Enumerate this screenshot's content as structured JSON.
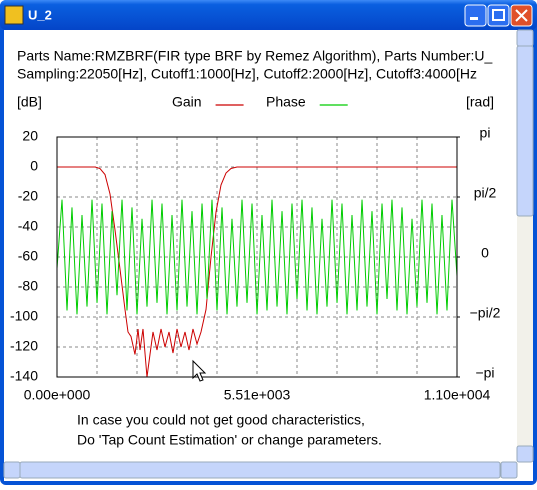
{
  "window": {
    "title": "U_2",
    "info_lines": [
      "Parts Name:RMZBRF(FIR type BRF by Remez Algorithm), Parts Number:U_",
      "Sampling:22050[Hz], Cutoff1:1000[Hz], Cutoff2:2000[Hz], Cutoff3:4000[Hz"
    ],
    "notes": [
      "In case you could not get good characteristics,",
      "Do 'Tap Count Estimation' or change parameters."
    ]
  },
  "chart_data": {
    "type": "line",
    "y_label": "[dB]",
    "y2_label": "[rad]",
    "grid": true,
    "xlim": [
      0,
      11025
    ],
    "xticks": [
      {
        "value": 0,
        "label": "0.00e+000"
      },
      {
        "value": 5512.5,
        "label": "5.51e+003"
      },
      {
        "value": 11025,
        "label": "1.10e+004"
      }
    ],
    "ylim": [
      -140,
      20
    ],
    "yticks": [
      20,
      0,
      -20,
      -40,
      -60,
      -80,
      -100,
      -120,
      -140
    ],
    "y2lim": [
      -3.1416,
      3.1416
    ],
    "y2ticks": [
      {
        "value": 3.1416,
        "label": "pi"
      },
      {
        "value": 1.5708,
        "label": "pi/2"
      },
      0,
      {
        "value": -1.5708,
        "label": "−pi/2"
      },
      {
        "value": -3.1416,
        "label": "−pi"
      }
    ],
    "series": [
      {
        "name": "Gain",
        "color": "#cc0000",
        "x": [
          0,
          1050,
          1185,
          1323,
          1461,
          1599,
          1736,
          1874,
          1957,
          2040,
          2150,
          2233,
          2288,
          2370,
          2480,
          2563,
          2646,
          2756,
          2867,
          2977,
          3087,
          3197,
          3308,
          3418,
          3528,
          3638,
          3748,
          3859,
          3969,
          4107,
          4245,
          4383,
          4520,
          4658,
          4796,
          4961,
          11025
        ],
        "values": [
          0,
          0,
          -1,
          -5,
          -18,
          -42,
          -68,
          -95,
          -110,
          -113,
          -125,
          -108,
          -122,
          -108,
          -140,
          -125,
          -110,
          -122,
          -108,
          -120,
          -110,
          -124,
          -108,
          -120,
          -110,
          -122,
          -108,
          -118,
          -110,
          -95,
          -60,
          -30,
          -12,
          -4,
          -1,
          0,
          0
        ]
      },
      {
        "name": "Phase",
        "color": "#00cc00",
        "axis": "y2",
        "x": [
          0,
          138,
          276,
          413,
          551,
          689,
          827,
          965,
          1103,
          1240,
          1378,
          1516,
          1654,
          1792,
          1929,
          2067,
          2205,
          2343,
          2481,
          2619,
          2756,
          2894,
          3032,
          3170,
          3308,
          3445,
          3583,
          3721,
          3859,
          3997,
          4134,
          4272,
          4410,
          4548,
          4686,
          4823,
          4961,
          5099,
          5237,
          5375,
          5513,
          5650,
          5788,
          5926,
          6064,
          6202,
          6339,
          6477,
          6615,
          6753,
          6891,
          7028,
          7166,
          7304,
          7442,
          7580,
          7718,
          7855,
          7993,
          8131,
          8269,
          8407,
          8544,
          8682,
          8820,
          8958,
          9096,
          9233,
          9371,
          9509,
          9647,
          9785,
          9922,
          10060,
          10198,
          10336,
          10474,
          10611,
          10749,
          10887,
          11025
        ],
        "values": [
          -0.3,
          1.5,
          -1.4,
          1.3,
          -1.5,
          1.1,
          -1.3,
          1.5,
          -1.2,
          1.4,
          -1.5,
          1.2,
          -1.0,
          1.5,
          -1.4,
          1.3,
          -1.5,
          1.0,
          -1.3,
          1.5,
          -1.2,
          1.4,
          -1.5,
          1.1,
          -1.4,
          1.5,
          -1.3,
          1.2,
          -1.5,
          1.4,
          -1.1,
          1.5,
          -1.4,
          1.3,
          -1.5,
          1.0,
          -1.3,
          1.5,
          -1.2,
          1.4,
          -1.5,
          1.1,
          -1.4,
          1.5,
          -1.3,
          1.2,
          -1.5,
          1.4,
          -1.1,
          1.5,
          -1.4,
          1.3,
          -1.5,
          1.0,
          -1.3,
          1.5,
          -1.2,
          1.4,
          -1.5,
          1.1,
          -1.4,
          1.5,
          -1.3,
          1.2,
          -1.5,
          1.4,
          -1.1,
          1.5,
          -1.4,
          1.3,
          -1.5,
          1.0,
          -1.3,
          1.5,
          -1.2,
          1.4,
          -1.5,
          1.1,
          -1.4,
          1.5,
          -0.5
        ]
      }
    ]
  }
}
